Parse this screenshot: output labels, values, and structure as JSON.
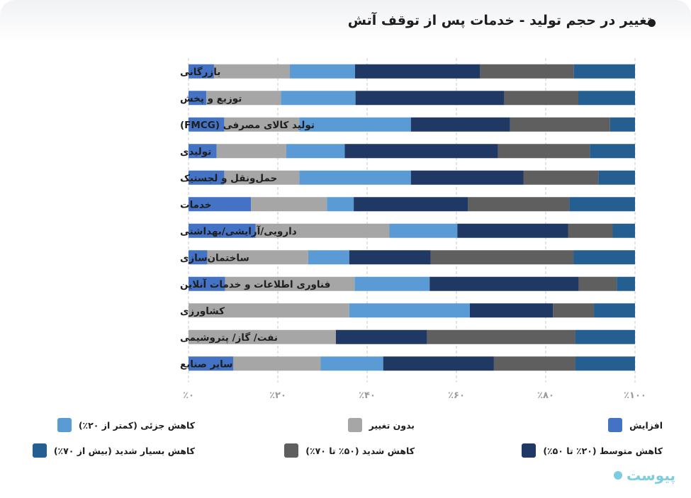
{
  "title": "تغییر در حجم تولید - خدمات پس از توقف آتش",
  "brand": "پیوست",
  "chart_data": {
    "type": "bar",
    "orientation": "horizontal-stacked-100",
    "title": "تغییر در حجم تولید - خدمات پس از توقف آتش",
    "categories": [
      "بازرگانی",
      "توزیع و پخش",
      "تولید کالای مصرفی (FMCG)",
      "تولیدی",
      "حمل‌ونقل و لجستیک",
      "خدمات",
      "دارویی/آرایشی/بهداشتی",
      "ساختمان‌سازی",
      "فناوری اطلاعات و خدمات آنلاین",
      "کشاورزی",
      "نفت/ گاز/ پتروشیمی",
      "سایر صنایع"
    ],
    "series": [
      {
        "name": "افزایش",
        "color": "#4472c4",
        "values": [
          5.7,
          4.0,
          8.0,
          6.3,
          8.0,
          14.0,
          15.0,
          4.2,
          8.2,
          0,
          0,
          10.0
        ]
      },
      {
        "name": "بدون تغییر",
        "color": "#a6a6a6",
        "values": [
          17.0,
          16.7,
          16.8,
          15.6,
          16.8,
          17.0,
          30.0,
          22.6,
          29.0,
          36.0,
          33.0,
          19.6
        ]
      },
      {
        "name": "کاهش جزئی (کمتر از ۲۰٪)",
        "color": "#5b9bd5",
        "values": [
          14.6,
          16.7,
          25.0,
          13.1,
          25.0,
          6.0,
          15.2,
          9.2,
          16.8,
          27.0,
          0,
          14.0
        ]
      },
      {
        "name": "کاهش متوسط (۲۰٪ تا ۵۰٪)",
        "color": "#203864",
        "values": [
          28.0,
          33.3,
          22.2,
          34.3,
          25.2,
          25.6,
          24.8,
          18.2,
          33.4,
          18.6,
          20.4,
          24.8
        ]
      },
      {
        "name": "کاهش شدید (۵۰٪ تا ۷۰٪)",
        "color": "#5f5f5f",
        "values": [
          21.0,
          16.6,
          22.4,
          20.6,
          16.8,
          22.7,
          10.0,
          32.0,
          8.5,
          9.2,
          33.2,
          18.2
        ]
      },
      {
        "name": "کاهش بسیار شدید (بیش از ۷۰٪)",
        "color": "#255e91",
        "values": [
          13.7,
          12.7,
          5.6,
          10.1,
          8.2,
          14.7,
          5.0,
          13.8,
          4.1,
          9.2,
          13.4,
          13.4
        ]
      }
    ],
    "x_ticks": [
      "٪۰",
      "٪۲۰",
      "٪۴۰",
      "٪۶۰",
      "٪۸۰",
      "٪۱۰۰"
    ],
    "xlim": [
      0,
      100
    ],
    "legend_position": "bottom",
    "grid": "vertical dashed"
  }
}
